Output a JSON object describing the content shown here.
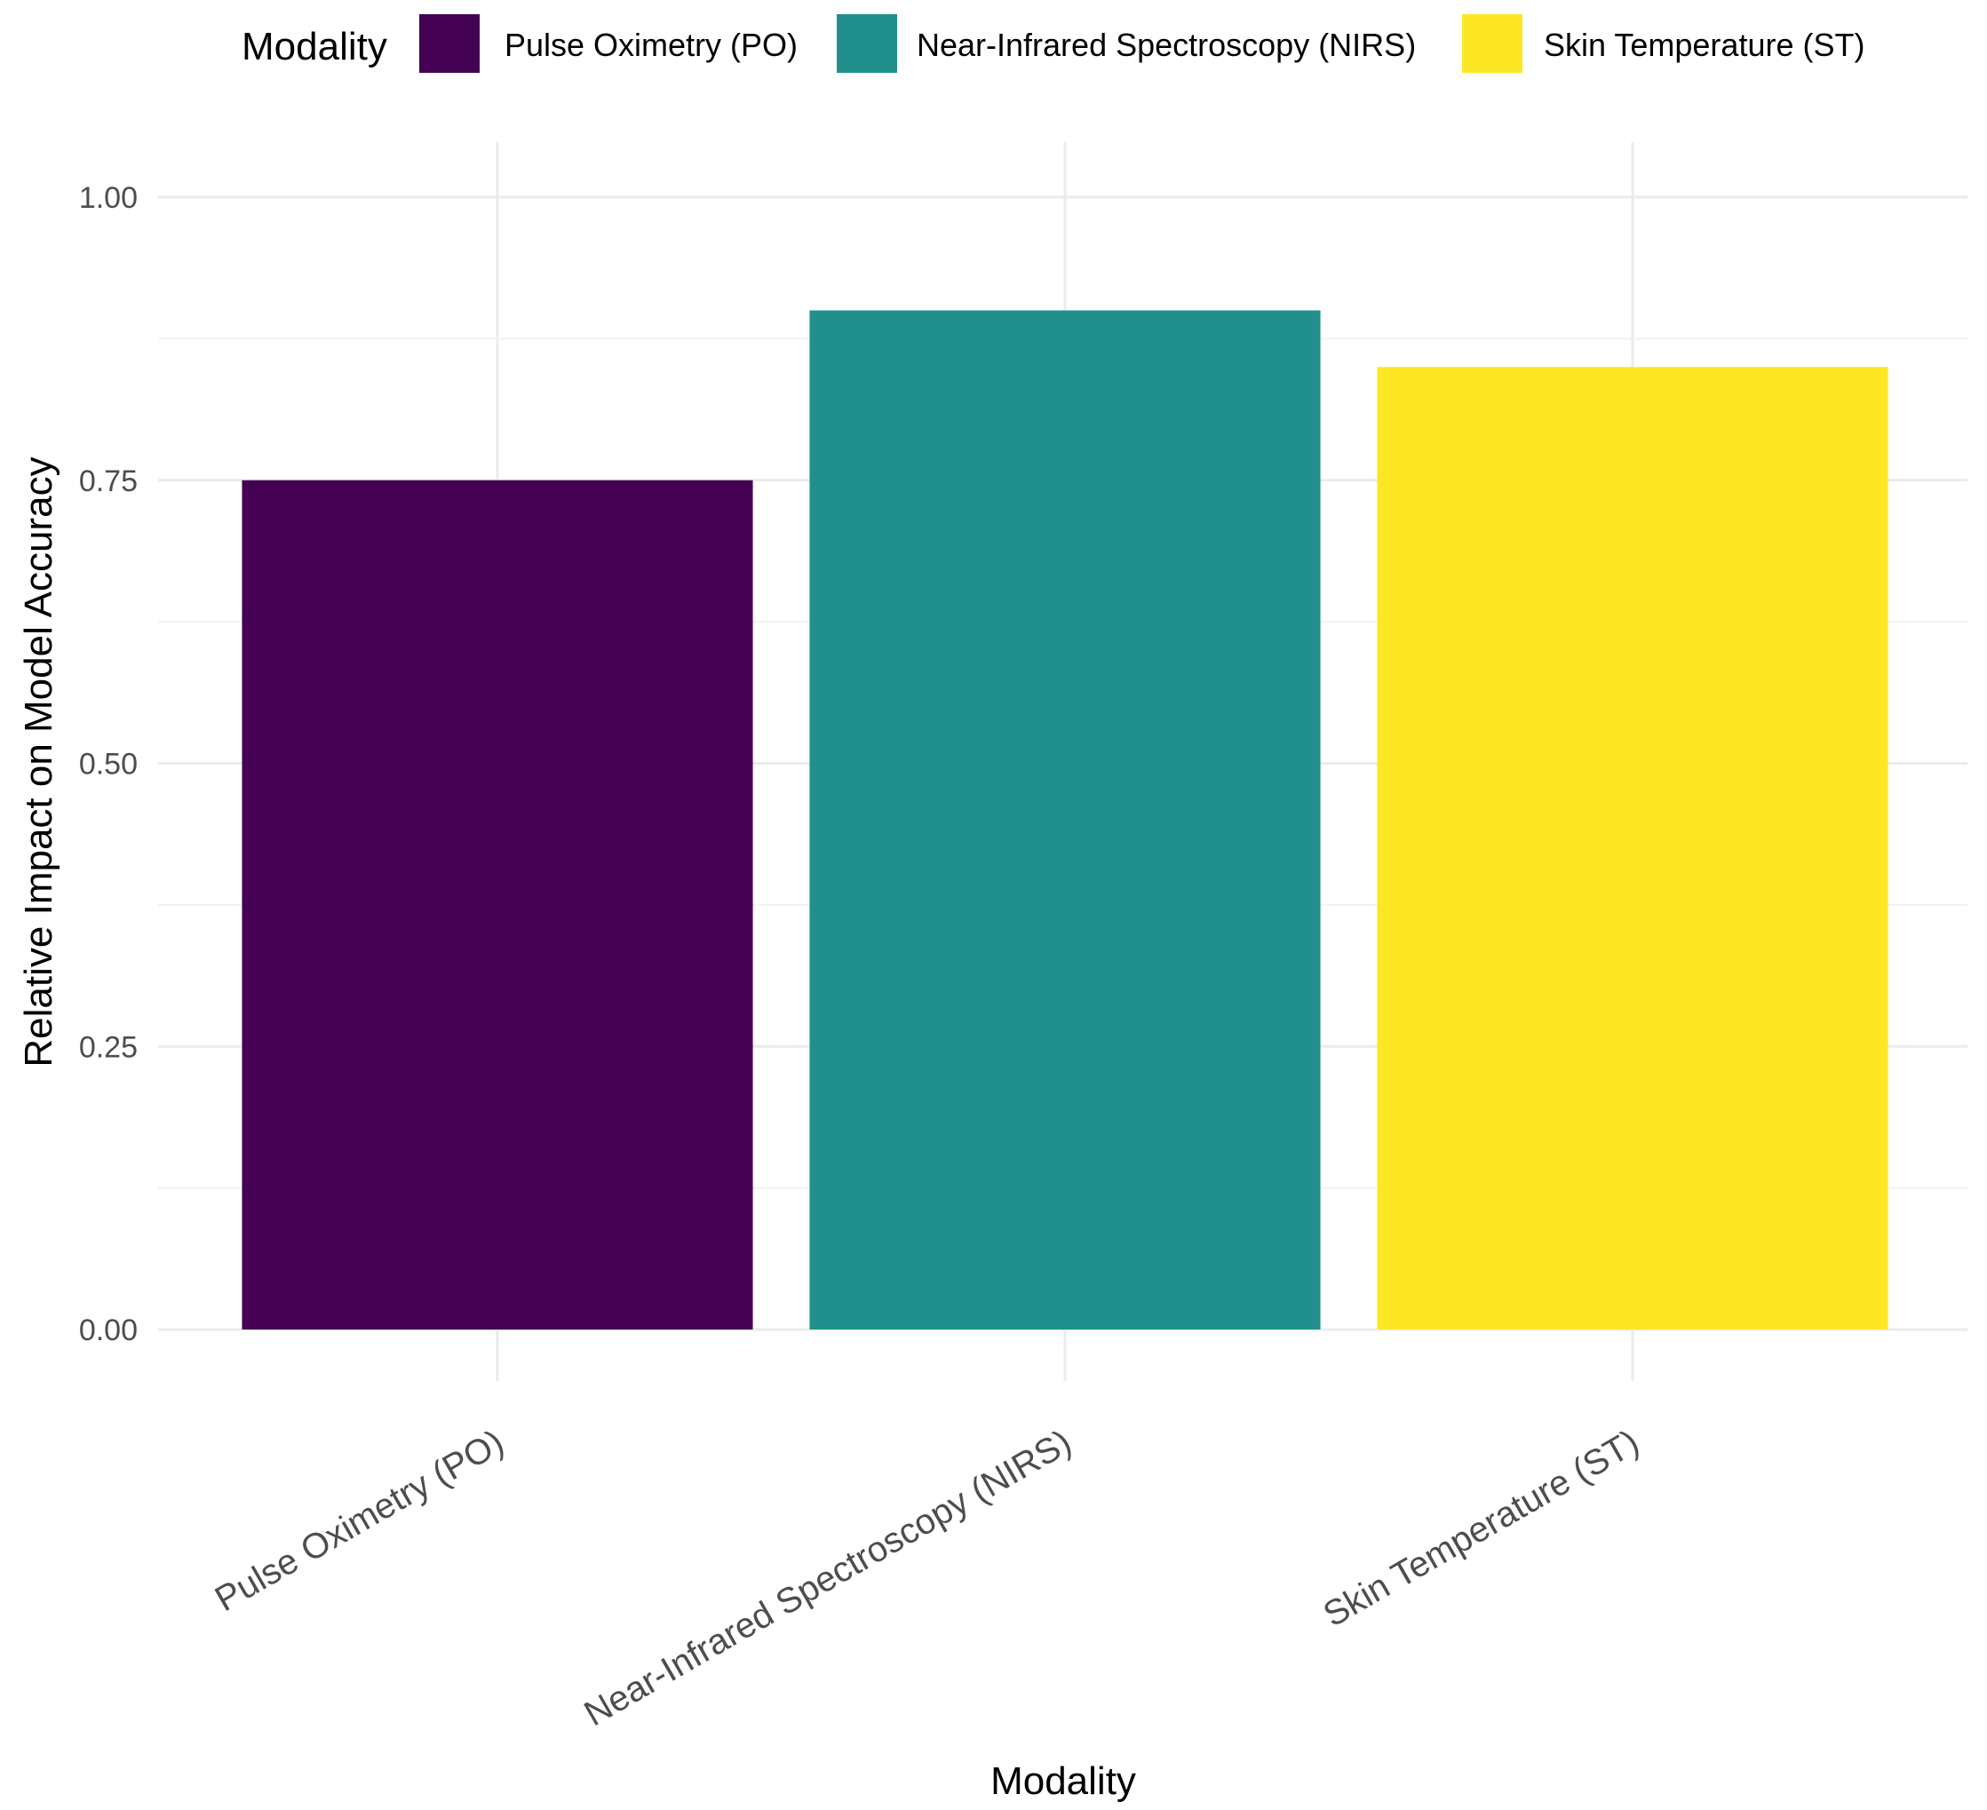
{
  "chart_data": {
    "type": "bar",
    "title": "",
    "xlabel": "Modality",
    "ylabel": "Relative Impact on Model Accuracy",
    "categories": [
      "Pulse Oximetry (PO)",
      "Near-Infrared Spectroscopy (NIRS)",
      "Skin Temperature (ST)"
    ],
    "values": [
      0.75,
      0.9,
      0.85
    ],
    "colors": [
      "#440154",
      "#21908C",
      "#FDE725"
    ],
    "ylim": [
      0,
      1.0
    ],
    "yticks": [
      "0.00",
      "0.25",
      "0.50",
      "0.75",
      "1.00"
    ],
    "grid": true,
    "legend": {
      "title": "Modality",
      "placement": "top",
      "entries": [
        "Pulse Oximetry (PO)",
        "Near-Infrared Spectroscopy (NIRS)",
        "Skin Temperature (ST)"
      ]
    }
  }
}
